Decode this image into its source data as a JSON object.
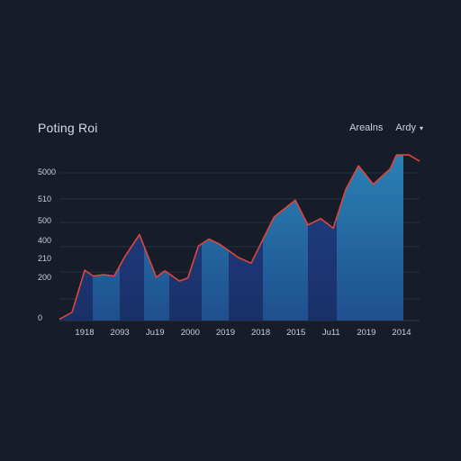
{
  "header": {
    "title": "Poting Roi",
    "control_left": "Arealns",
    "control_right": "Ardy",
    "dropdown_icon": "chevron-down-icon"
  },
  "colors": {
    "background": "#161c28",
    "gridline": "#2f3a4d",
    "line": "#e0463c",
    "fill_dark": "#1f3a78",
    "fill_light": "#2a86b8"
  },
  "chart_data": {
    "type": "area",
    "title": "Poting Roi",
    "xlabel": "",
    "ylabel": "",
    "grid": true,
    "y_tick_labels": [
      "0",
      "200",
      "210",
      "400",
      "500",
      "510",
      "5000"
    ],
    "x_tick_labels": [
      "1918",
      "2093",
      "Ju19",
      "2000",
      "2019",
      "2018",
      "2015",
      "Ju11",
      "2019",
      "2014"
    ],
    "series": [
      {
        "x": [
          0,
          0.3,
          0.6,
          0.8,
          1.05,
          1.3,
          1.55,
          1.9,
          2.3,
          2.5,
          2.85,
          3.05,
          3.3,
          3.55,
          3.8,
          4.25,
          4.55,
          5.1,
          5.6,
          5.9,
          6.2,
          6.5,
          6.8,
          7.1,
          7.45,
          7.85,
          8.0,
          8.3,
          8.55
        ],
        "y": [
          20,
          130,
          790,
          700,
          720,
          700,
          1000,
          1350,
          680,
          780,
          620,
          670,
          1170,
          1280,
          1200,
          990,
          900,
          1630,
          1890,
          1500,
          1600,
          1450,
          2060,
          2430,
          2140,
          2380,
          2600,
          2600,
          2500
        ]
      }
    ]
  }
}
